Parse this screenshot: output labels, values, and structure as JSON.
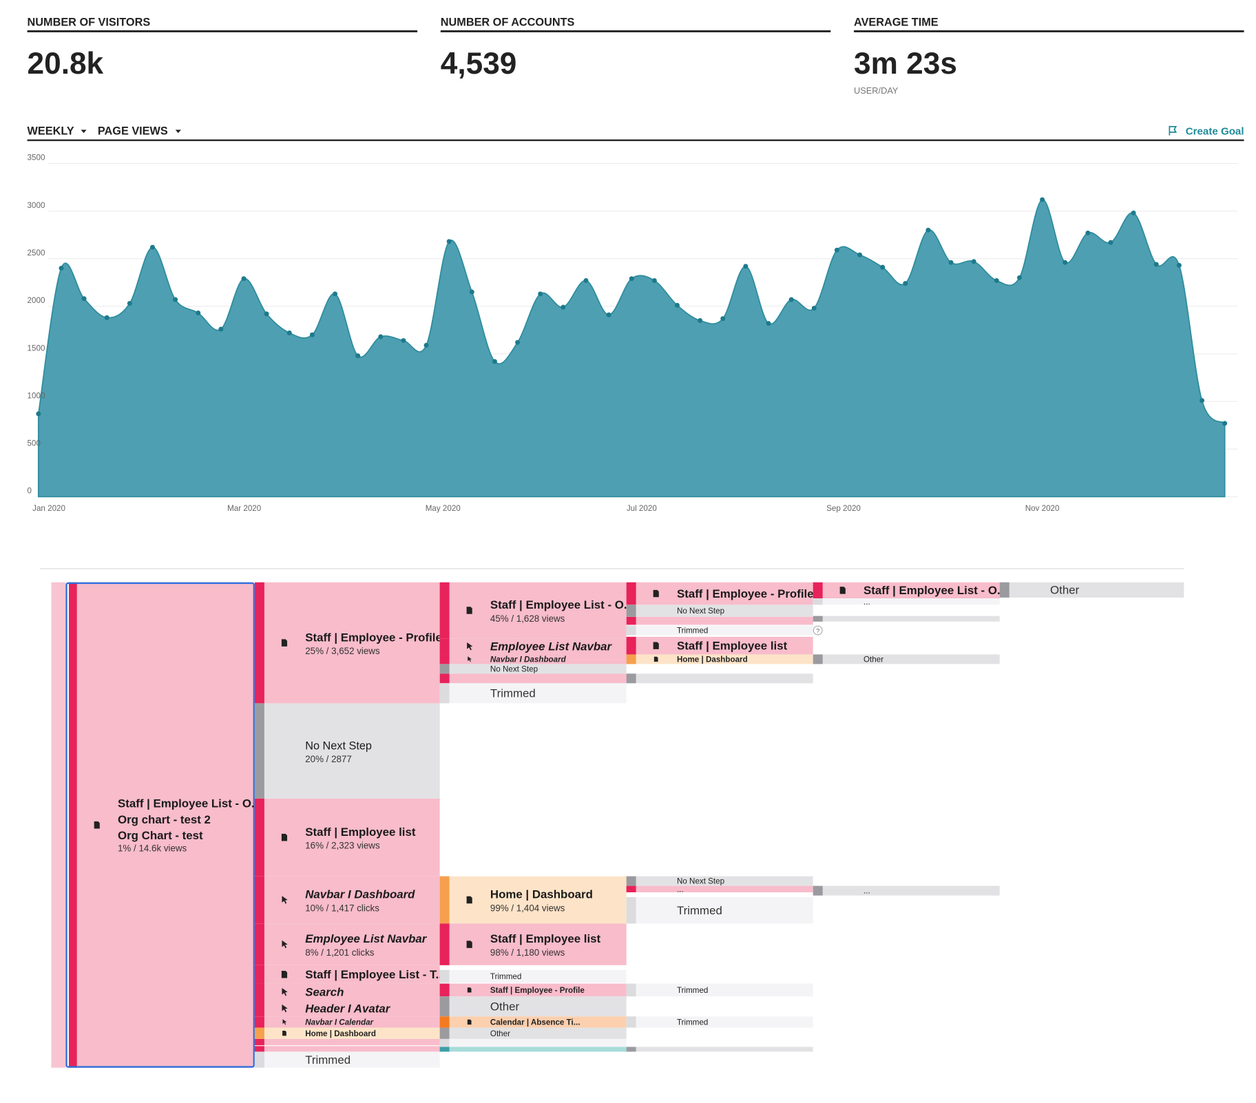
{
  "stats": [
    {
      "label": "NUMBER OF VISITORS",
      "value": "20.8k"
    },
    {
      "label": "NUMBER OF ACCOUNTS",
      "value": "4,539"
    },
    {
      "label": "AVERAGE TIME",
      "value": "3m 23s",
      "unit": "USER/DAY"
    }
  ],
  "toolbar": {
    "interval": "WEEKLY",
    "metric": "PAGE VIEWS",
    "action": "Create Goal"
  },
  "chart_data": {
    "type": "area",
    "x": [
      0,
      1,
      2,
      3,
      4,
      5,
      6,
      7,
      8,
      9,
      10,
      11,
      12,
      13,
      14,
      15,
      16,
      17,
      18,
      19,
      20,
      21,
      22,
      23,
      24,
      25,
      26,
      27,
      28,
      29,
      30,
      31,
      32,
      33,
      34,
      35,
      36,
      37,
      38,
      39,
      40,
      41,
      42,
      43,
      44,
      45,
      46,
      47,
      48,
      49,
      50,
      51,
      52
    ],
    "values": [
      870,
      2400,
      2080,
      1880,
      2030,
      2620,
      2070,
      1930,
      1760,
      2290,
      1920,
      1720,
      1700,
      2130,
      1480,
      1680,
      1640,
      1590,
      2680,
      2150,
      1420,
      1620,
      2130,
      1990,
      2270,
      1910,
      2290,
      2270,
      2010,
      1850,
      1870,
      2420,
      1820,
      2070,
      1980,
      2590,
      2540,
      2410,
      2240,
      2800,
      2460,
      2470,
      2270,
      2300,
      3120,
      2460,
      2770,
      2670,
      2980,
      2440,
      2430,
      1010,
      770
    ],
    "color": "#4d9fb1",
    "xlim": [
      0,
      52
    ],
    "ylim": [
      0,
      3500
    ],
    "yticks": [
      0,
      500,
      1000,
      1500,
      2000,
      2500,
      3000,
      3500
    ],
    "xticks": [
      {
        "value": 0.46,
        "label": "Jan 2020"
      },
      {
        "value": 9.02,
        "label": "Mar 2020"
      },
      {
        "value": 17.73,
        "label": "May 2020"
      },
      {
        "value": 26.44,
        "label": "Jul 2020"
      },
      {
        "value": 35.29,
        "label": "Sep 2020"
      },
      {
        "value": 44.0,
        "label": "Nov 2020"
      }
    ],
    "grid": true
  },
  "flow": {
    "help": "?",
    "nodes": [
      {
        "lines": [
          "Staff | Employee List - O...",
          "Org chart - test 2",
          "Org Chart - test"
        ],
        "detail": "1% / 14.6k views"
      },
      {
        "label": "Staff | Employee - Profile",
        "detail": "25% / 3,652 views"
      },
      {
        "label": "No Next Step",
        "detail": "20% / 2877"
      },
      {
        "label": "Staff | Employee list",
        "detail": "16% / 2,323 views"
      },
      {
        "label": "Navbar I Dashboard",
        "detail": "10% / 1,417 clicks"
      },
      {
        "label": "Employee List Navbar",
        "detail": "8% / 1,201 clicks"
      },
      {
        "label": "Staff | Employee List - T..."
      },
      {
        "label": "Search"
      },
      {
        "label": "Header I Avatar"
      },
      {
        "label": "Navbar I Calendar"
      },
      {
        "label": "Home | Dashboard"
      },
      {
        "label": "Trimmed"
      },
      {
        "label": "Staff | Employee List - O...",
        "detail": "45% / 1,628 views"
      },
      {
        "label": "Employee List Navbar"
      },
      {
        "label": "Navbar I Dashboard"
      },
      {
        "label": "No Next Step"
      },
      {
        "label": "Trimmed"
      },
      {
        "label": "Home | Dashboard",
        "detail": "99% / 1,404 views"
      },
      {
        "label": "Staff | Employee list",
        "detail": "98% / 1,180 views"
      },
      {
        "label": "Trimmed"
      },
      {
        "label": "Staff | Employee - Profile"
      },
      {
        "label": "Other"
      },
      {
        "label": "Calendar | Absence Ti..."
      },
      {
        "label": "Other"
      },
      {
        "label": "Staff | Employee - Profile"
      },
      {
        "label": "No Next Step"
      },
      {
        "label": "Trimmed"
      },
      {
        "label": "Staff | Employee list"
      },
      {
        "label": "Home | Dashboard"
      },
      {
        "label": "No Next Step"
      },
      {
        "label": "Trimmed"
      },
      {
        "label": "Trimmed"
      },
      {
        "label": "Trimmed"
      },
      {
        "label": "Staff | Employee List - O..."
      },
      {
        "label": "Other"
      },
      {
        "label": "Other"
      },
      {
        "label": "..."
      },
      {
        "label": "..."
      },
      {
        "label": "..."
      }
    ]
  }
}
